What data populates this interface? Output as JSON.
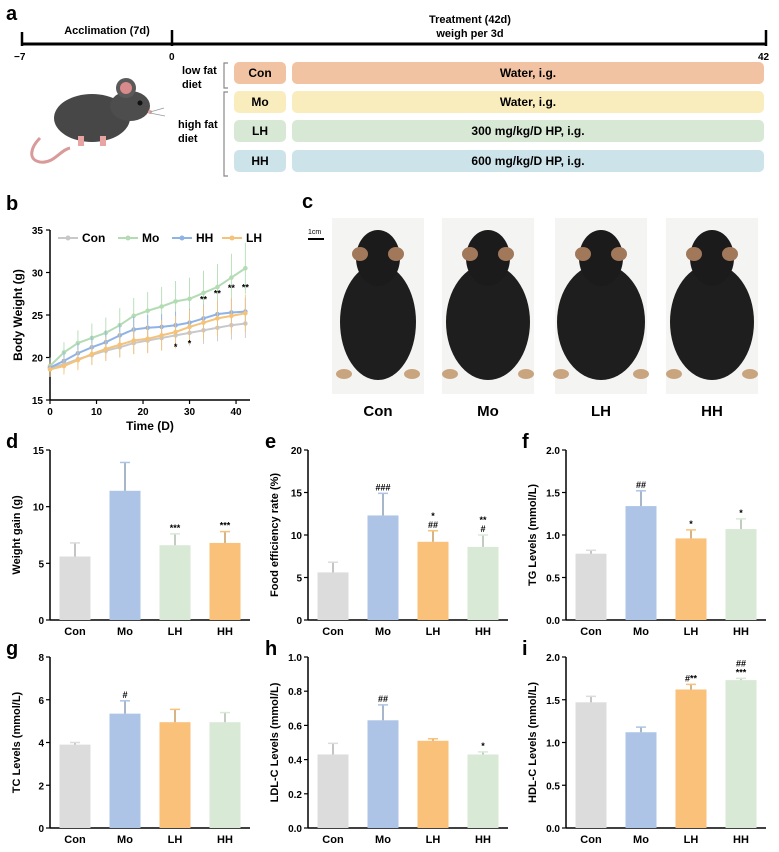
{
  "colors": {
    "con_fill": "#dcdcdc",
    "mo_fill": "#adc4e6",
    "lh_fill": "#fac17a",
    "hh_fill": "#d8ead6",
    "con_line": "#c8c8c8",
    "mo_line": "#b4dcb4",
    "hh_line": "#8fb3e6",
    "lh_line": "#f5c27a",
    "row_con": "#f2c3a2",
    "row_mo": "#faedbd",
    "row_lh": "#d7e8d4",
    "row_hh": "#cde3ea"
  },
  "panel_a": {
    "label": "a",
    "acclimation": "Acclimation (7d)",
    "treatment_line1": "Treatment (42d)",
    "treatment_line2": "weigh per 3d",
    "tick_start": "−7",
    "tick_zero": "0",
    "tick_end": "42",
    "low_fat": [
      "low fat",
      "diet"
    ],
    "high_fat": [
      "high fat",
      "diet"
    ],
    "groups": [
      {
        "code": "Con",
        "treatment": "Water, i.g."
      },
      {
        "code": "Mo",
        "treatment": "Water, i.g."
      },
      {
        "code": "LH",
        "treatment": "300 mg/kg/D HP, i.g."
      },
      {
        "code": "HH",
        "treatment": "600 mg/kg/D HP, i.g."
      }
    ]
  },
  "panel_c": {
    "label": "c",
    "scale": "1cm",
    "names": [
      "Con",
      "Mo",
      "LH",
      "HH"
    ]
  },
  "chart_data": [
    {
      "panel": "b",
      "type": "line",
      "xlabel": "Time (D)",
      "ylabel": "Body Weight (g)",
      "xlim": [
        0,
        43
      ],
      "ylim": [
        15,
        35
      ],
      "xticks": [
        0,
        10,
        20,
        30,
        40
      ],
      "yticks": [
        15,
        20,
        25,
        30,
        35
      ],
      "legend": [
        "Con",
        "Mo",
        "HH",
        "LH"
      ],
      "x": [
        0,
        3,
        6,
        9,
        12,
        15,
        18,
        21,
        24,
        27,
        30,
        33,
        36,
        39,
        42
      ],
      "series": [
        {
          "name": "Con",
          "values": [
            18.8,
            19.2,
            19.8,
            20.3,
            20.8,
            21.2,
            21.7,
            22.0,
            22.3,
            22.6,
            22.9,
            23.2,
            23.5,
            23.8,
            24.0
          ],
          "err": [
            0.8,
            0.9,
            1.0,
            1.1,
            1.2,
            1.2,
            1.3,
            1.4,
            1.4,
            1.5,
            1.5,
            1.6,
            1.6,
            1.7,
            1.7
          ]
        },
        {
          "name": "Mo",
          "values": [
            19.0,
            20.6,
            21.7,
            22.3,
            22.9,
            23.8,
            24.9,
            25.5,
            26.0,
            26.6,
            26.9,
            27.6,
            28.3,
            29.4,
            30.5
          ],
          "err": [
            1.0,
            1.2,
            1.5,
            1.7,
            1.8,
            2.0,
            2.1,
            2.2,
            2.3,
            2.4,
            2.5,
            2.6,
            2.7,
            2.8,
            3.0
          ]
        },
        {
          "name": "HH",
          "values": [
            18.8,
            19.6,
            20.5,
            21.2,
            21.8,
            22.6,
            23.3,
            23.5,
            23.6,
            23.8,
            24.1,
            24.6,
            25.1,
            25.3,
            25.4
          ],
          "err": [
            1.0,
            1.1,
            1.2,
            1.3,
            1.4,
            1.4,
            1.5,
            1.5,
            1.5,
            1.6,
            1.6,
            1.6,
            1.6,
            1.6,
            1.6
          ]
        },
        {
          "name": "LH",
          "values": [
            18.6,
            19.0,
            19.7,
            20.4,
            21.0,
            21.5,
            22.0,
            22.2,
            22.6,
            23.0,
            23.6,
            24.1,
            24.6,
            24.9,
            25.2
          ],
          "err": [
            0.9,
            1.0,
            1.2,
            1.3,
            1.4,
            1.5,
            1.6,
            1.7,
            1.8,
            1.9,
            2.0,
            2.0,
            2.1,
            2.1,
            2.2
          ]
        }
      ],
      "annotations": [
        {
          "x": 27,
          "y": 20.9,
          "text": "*"
        },
        {
          "x": 30,
          "y": 21.3,
          "text": "*"
        },
        {
          "x": 33,
          "y": 26.5,
          "text": "**"
        },
        {
          "x": 36,
          "y": 27.2,
          "text": "**"
        },
        {
          "x": 39,
          "y": 27.8,
          "text": "**"
        },
        {
          "x": 42,
          "y": 27.9,
          "text": "**"
        }
      ]
    },
    {
      "panel": "d",
      "type": "bar",
      "categories": [
        "Con",
        "Mo",
        "LH",
        "HH"
      ],
      "values": [
        5.6,
        11.4,
        6.6,
        6.8
      ],
      "errors": [
        1.2,
        2.5,
        1.0,
        1.0
      ],
      "sig": [
        [],
        [],
        [
          "***"
        ],
        [
          "***"
        ]
      ],
      "ylabel": "Weight gain (g)",
      "ylim": [
        0,
        15
      ],
      "yticks": [
        0,
        5,
        10,
        15
      ],
      "fills": [
        "#dcdcdc",
        "#adc4e6",
        "#d8ead6",
        "#fac17a"
      ]
    },
    {
      "panel": "e",
      "type": "bar",
      "categories": [
        "Con",
        "Mo",
        "LH",
        "HH"
      ],
      "values": [
        5.6,
        12.3,
        9.2,
        8.6
      ],
      "errors": [
        1.2,
        2.6,
        1.3,
        1.4
      ],
      "sig": [
        [],
        [
          "###"
        ],
        [
          "##",
          "*"
        ],
        [
          "#",
          "**"
        ]
      ],
      "ylabel": "Food efficiency rate (%)",
      "ylim": [
        0,
        20
      ],
      "yticks": [
        0,
        5,
        10,
        15,
        20
      ],
      "fills": [
        "#dcdcdc",
        "#adc4e6",
        "#fac17a",
        "#d8ead6"
      ]
    },
    {
      "panel": "f",
      "type": "bar",
      "categories": [
        "Con",
        "Mo",
        "LH",
        "HH"
      ],
      "values": [
        0.78,
        1.34,
        0.96,
        1.07
      ],
      "errors": [
        0.04,
        0.18,
        0.1,
        0.12
      ],
      "sig": [
        [],
        [
          "##"
        ],
        [
          "*"
        ],
        [
          "*"
        ]
      ],
      "ylabel": "TG Levels (mmol/L)",
      "ylim": [
        0,
        2.0
      ],
      "yticks": [
        0.0,
        0.5,
        1.0,
        1.5,
        2.0
      ],
      "ytick_labels": [
        "0.0",
        "0.5",
        "1.0",
        "1.5",
        "2.0"
      ],
      "fills": [
        "#dcdcdc",
        "#adc4e6",
        "#fac17a",
        "#d8ead6"
      ]
    },
    {
      "panel": "g",
      "type": "bar",
      "categories": [
        "Con",
        "Mo",
        "LH",
        "HH"
      ],
      "values": [
        3.9,
        5.35,
        4.95,
        4.95
      ],
      "errors": [
        0.1,
        0.6,
        0.6,
        0.45
      ],
      "sig": [
        [],
        [
          "#"
        ],
        [],
        []
      ],
      "ylabel": "TC Levels (mmol/L)",
      "ylim": [
        0,
        8
      ],
      "yticks": [
        0,
        2,
        4,
        6,
        8
      ],
      "fills": [
        "#dcdcdc",
        "#adc4e6",
        "#fac17a",
        "#d8ead6"
      ]
    },
    {
      "panel": "h",
      "type": "bar",
      "categories": [
        "Con",
        "Mo",
        "LH",
        "HH"
      ],
      "values": [
        0.43,
        0.63,
        0.51,
        0.43
      ],
      "errors": [
        0.065,
        0.09,
        0.012,
        0.015
      ],
      "sig": [
        [],
        [
          "##"
        ],
        [],
        [
          "*"
        ]
      ],
      "ylabel": "LDL-C Levels (mmol/L)",
      "ylim": [
        0,
        1.0
      ],
      "yticks": [
        0.0,
        0.2,
        0.4,
        0.6,
        0.8,
        1.0
      ],
      "ytick_labels": [
        "0.0",
        "0.2",
        "0.4",
        "0.6",
        "0.8",
        "1.0"
      ],
      "fills": [
        "#dcdcdc",
        "#adc4e6",
        "#fac17a",
        "#d8ead6"
      ]
    },
    {
      "panel": "i",
      "type": "bar",
      "categories": [
        "Con",
        "Mo",
        "LH",
        "HH"
      ],
      "values": [
        1.47,
        1.12,
        1.62,
        1.73
      ],
      "errors": [
        0.07,
        0.06,
        0.06,
        0.02
      ],
      "sig": [
        [],
        [],
        [
          "#**"
        ],
        [
          "***",
          "##"
        ]
      ],
      "ylabel": "HDL-C Levels (mmol/L)",
      "ylim": [
        0,
        2.0
      ],
      "yticks": [
        0.0,
        0.5,
        1.0,
        1.5,
        2.0
      ],
      "ytick_labels": [
        "0.0",
        "0.5",
        "1.0",
        "1.5",
        "2.0"
      ],
      "fills": [
        "#dcdcdc",
        "#adc4e6",
        "#fac17a",
        "#d8ead6"
      ]
    }
  ]
}
